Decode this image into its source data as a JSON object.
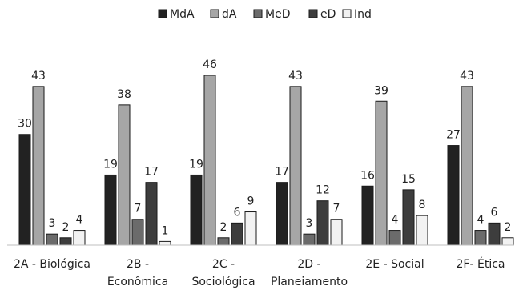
{
  "chart_data": {
    "type": "bar",
    "title": "",
    "xlabel": "",
    "ylabel": "",
    "ylim": [
      0,
      46
    ],
    "grid": false,
    "legend_position": "top",
    "categories": [
      [
        "2A - Biológica"
      ],
      [
        "2B -",
        "Econômica"
      ],
      [
        "2C -",
        "Sociológica"
      ],
      [
        "2D -",
        "Planeiamento"
      ],
      [
        "2E - Social"
      ],
      [
        "2F- Ética"
      ]
    ],
    "series": [
      {
        "name": "MdA",
        "color": "#222222",
        "values": [
          30,
          19,
          19,
          17,
          16,
          27
        ]
      },
      {
        "name": "dA",
        "color": "#a6a6a6",
        "values": [
          43,
          38,
          46,
          43,
          39,
          43
        ]
      },
      {
        "name": "MeD",
        "color": "#6b6b6b",
        "values": [
          3,
          7,
          2,
          3,
          4,
          4
        ]
      },
      {
        "name": "eD",
        "color": "#3d3d3d",
        "values": [
          2,
          17,
          6,
          12,
          15,
          6
        ]
      },
      {
        "name": "Ind",
        "color": "#f2f2f2",
        "values": [
          4,
          1,
          9,
          7,
          8,
          2
        ]
      }
    ]
  }
}
